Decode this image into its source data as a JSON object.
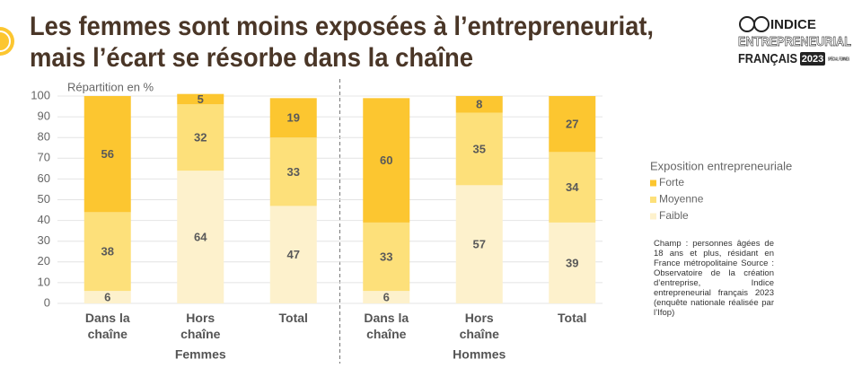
{
  "chart_data": {
    "type": "bar",
    "stacked": true,
    "title": [
      "Les femmes sont moins exposées à l’entrepreneuriat,",
      "mais l’écart se résorbe dans la chaîne"
    ],
    "y_label": "Répartition en %",
    "categories": [
      "Dans la chaîne",
      "Hors chaîne",
      "Total",
      "Dans la chaîne",
      "Hors chaîne",
      "Total"
    ],
    "groups": [
      "Femmes",
      "Hommes"
    ],
    "legend_title": "Exposition entrepreneuriale",
    "series": [
      {
        "name": "Faible",
        "color": "#fdf1cc",
        "values": [
          6,
          64,
          47,
          6,
          57,
          39
        ]
      },
      {
        "name": "Moyenne",
        "color": "#fde07a",
        "values": [
          38,
          32,
          33,
          33,
          35,
          34
        ]
      },
      {
        "name": "Forte",
        "color": "#fcc630",
        "values": [
          56,
          5,
          19,
          60,
          8,
          27
        ]
      }
    ],
    "ylim": [
      0,
      100
    ],
    "yticks": [
      0,
      10,
      20,
      30,
      40,
      50,
      60,
      70,
      80,
      90,
      100
    ],
    "grid": true,
    "note": "Champ : personnes âgées de 18 ans et plus, résidant en France métropolitaine Source : Observatoire de la création d’entreprise, Indice entrepreneurial français 2023 (enquête nationale réalisée par l’Ifop)"
  },
  "logo": {
    "line1": "INDICE",
    "line2": "ENTREPRENEURIAL",
    "line3": "FRANÇAIS",
    "year": "2023",
    "badge": "SPÉCIAL FEMMES"
  }
}
